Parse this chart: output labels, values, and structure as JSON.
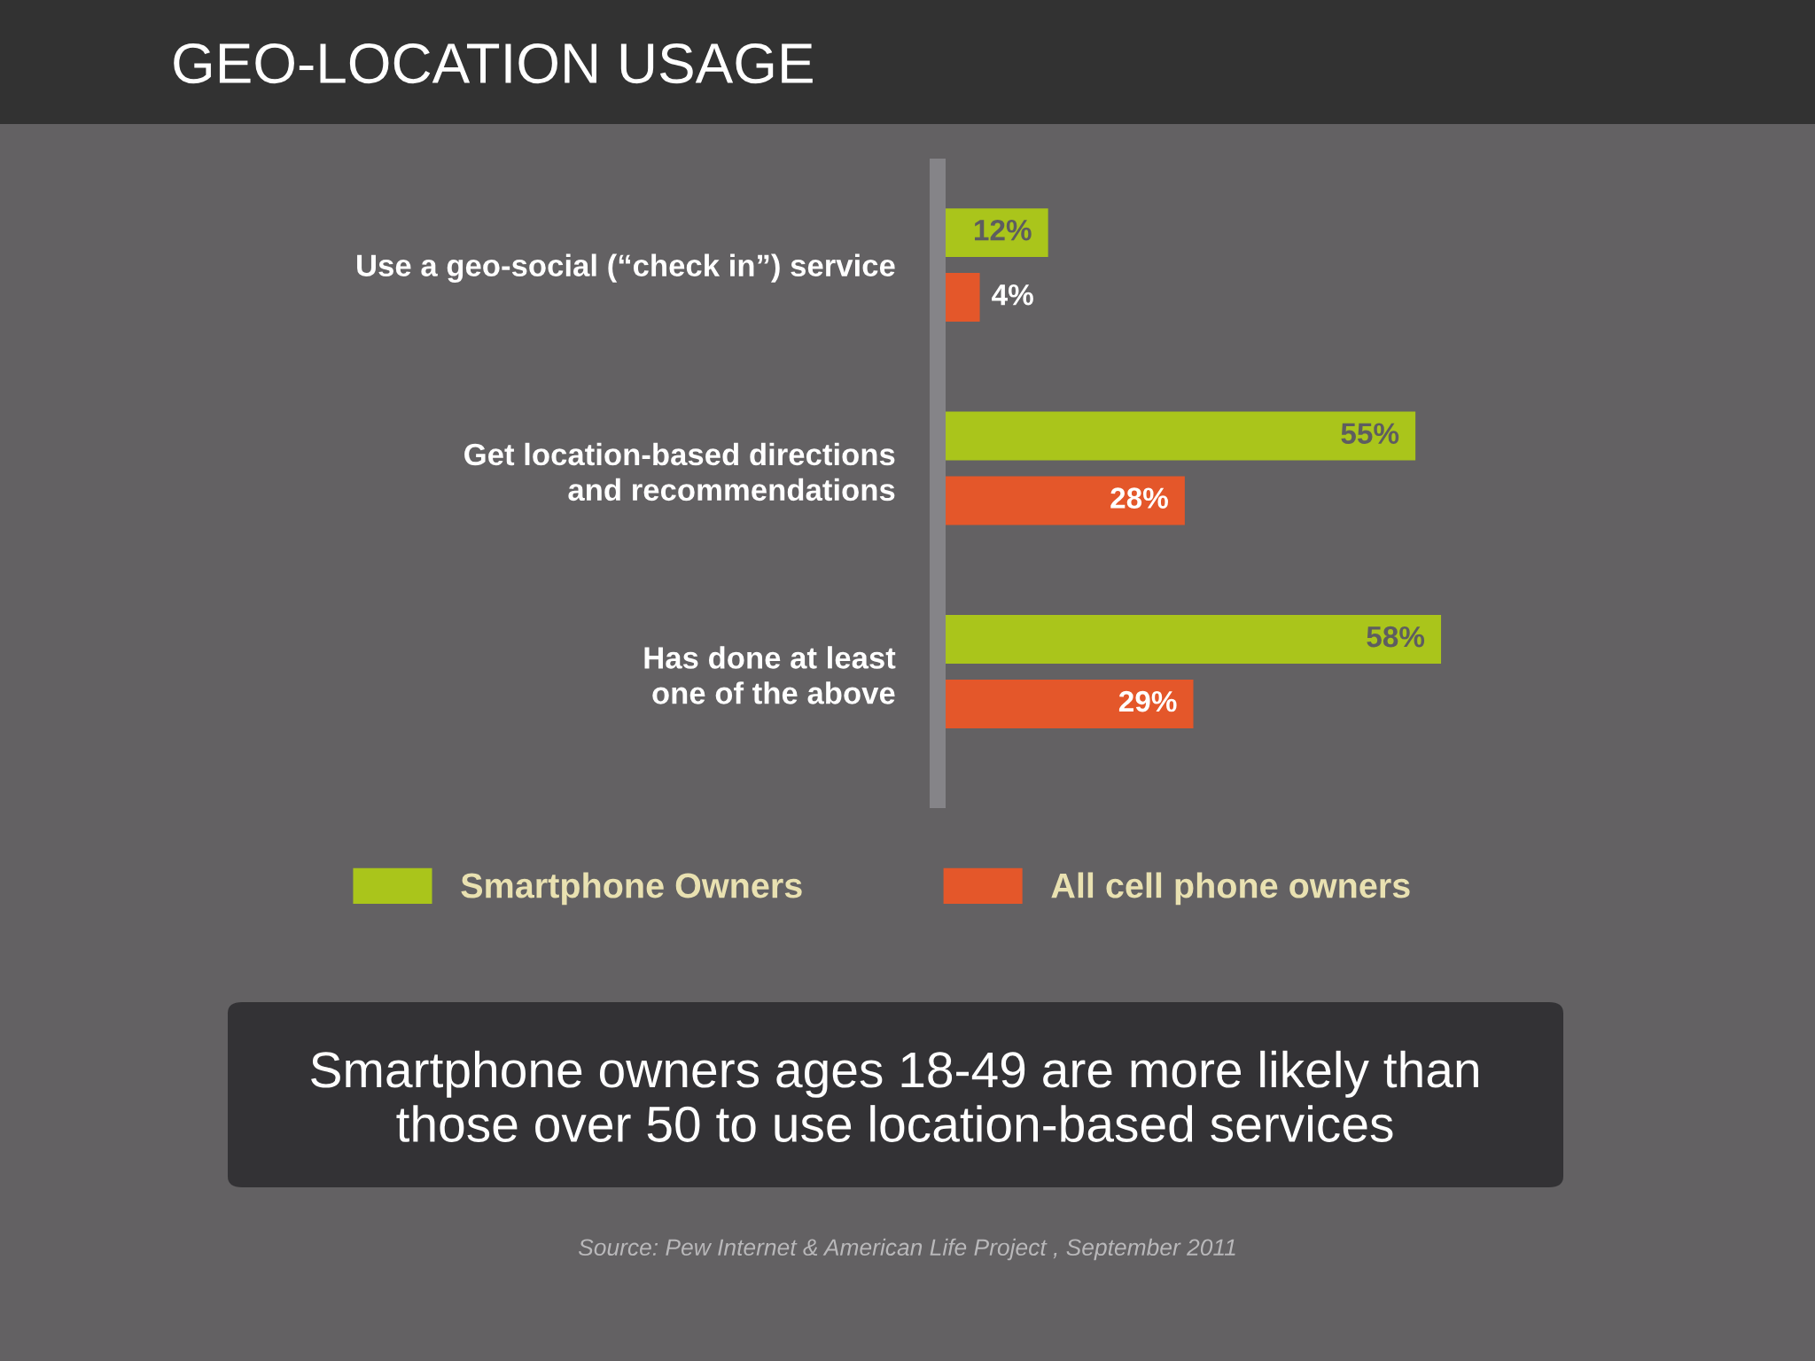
{
  "chart_data": {
    "type": "bar",
    "orientation": "horizontal",
    "title": "GEO-LOCATION USAGE",
    "categories": [
      "Use a geo-social (“check in”) service",
      "Get location-based directions\nand recommendations",
      "Has done at least\none of the above"
    ],
    "series": [
      {
        "name": "Smartphone Owners",
        "color": "#aac51b",
        "values": [
          12,
          55,
          58
        ],
        "value_labels": [
          "12%",
          "55%",
          "58%"
        ]
      },
      {
        "name": "All cell phone owners",
        "color": "#e4572a",
        "values": [
          4,
          28,
          29
        ],
        "value_labels": [
          "4%",
          "28%",
          "29%"
        ]
      }
    ],
    "tick_labels": "y",
    "legend": "bottom",
    "annotations": [
      "Smartphone owners ages 18-49 are more likely than\nthose over 50 to use location-based services",
      "Source: Pew Internet & American Life Project , September 2011"
    ]
  }
}
